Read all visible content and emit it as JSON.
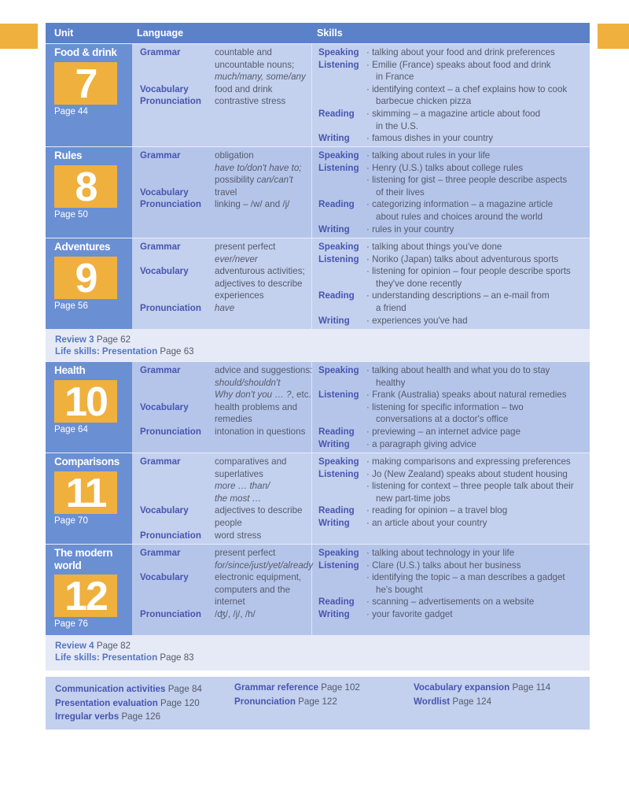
{
  "header": {
    "unit": "Unit",
    "language": "Language",
    "skills": "Skills"
  },
  "units": [
    {
      "title": "Food & drink",
      "number": "7",
      "page": "Page 44",
      "language": [
        {
          "l": "Grammar",
          "v": "countable and"
        },
        {
          "v": "uncountable nouns;"
        },
        {
          "vi": "much/many, some/any"
        },
        {
          "l": "Vocabulary",
          "v": "food and drink"
        },
        {
          "l": "Pronunciation",
          "v": "contrastive stress"
        }
      ],
      "skills": [
        {
          "l": "Speaking",
          "t": "· talking about your food and drink preferences"
        },
        {
          "l": "Listening",
          "t": "· Emilie (France) speaks about food and drink"
        },
        {
          "t": "in France",
          "ind": true
        },
        {
          "t": "· identifying context – a chef explains how to cook"
        },
        {
          "t": "barbecue chicken pizza",
          "ind": true
        },
        {
          "l": "Reading",
          "t": "· skimming – a magazine article about food"
        },
        {
          "t": "in the U.S.",
          "ind": true
        },
        {
          "l": "Writing",
          "t": "· famous dishes in your country"
        }
      ]
    },
    {
      "title": "Rules",
      "number": "8",
      "page": "Page 50",
      "language": [
        {
          "l": "Grammar",
          "v": "obligation"
        },
        {
          "vi": "have to/don't have to;"
        },
        {
          "v": "possibility ",
          "vi": "can/can't"
        },
        {
          "l": "Vocabulary",
          "v": "travel"
        },
        {
          "l": "Pronunciation",
          "v": "linking – /w/ and /j/"
        }
      ],
      "skills": [
        {
          "l": "Speaking",
          "t": "· talking about rules in your life"
        },
        {
          "l": "Listening",
          "t": "· Henry (U.S.) talks about college rules"
        },
        {
          "t": "· listening for gist – three people describe aspects"
        },
        {
          "t": "of their lives",
          "ind": true
        },
        {
          "l": "Reading",
          "t": "· categorizing information – a magazine article"
        },
        {
          "t": "about rules and choices around the world",
          "ind": true
        },
        {
          "l": "Writing",
          "t": "· rules in your country"
        }
      ]
    },
    {
      "title": "Adventures",
      "number": "9",
      "page": "Page 56",
      "language": [
        {
          "l": "Grammar",
          "v": "present perfect"
        },
        {
          "vi": "ever/never"
        },
        {
          "l": "Vocabulary",
          "v": "adventurous activities;"
        },
        {
          "v": "adjectives to describe"
        },
        {
          "v": "experiences"
        },
        {
          "l": "Pronunciation",
          "vi": "have"
        }
      ],
      "skills": [
        {
          "l": "Speaking",
          "t": "· talking about things you've done"
        },
        {
          "l": "Listening",
          "t": "· Noriko (Japan) talks about adventurous sports"
        },
        {
          "t": "· listening for opinion – four people describe sports"
        },
        {
          "t": "they've done recently",
          "ind": true
        },
        {
          "l": "Reading",
          "t": "· understanding descriptions – an e-mail from"
        },
        {
          "t": "a friend",
          "ind": true
        },
        {
          "l": "Writing",
          "t": "· experiences you've had"
        }
      ]
    },
    {
      "title": "Health",
      "number": "10",
      "page": "Page 64",
      "language": [
        {
          "l": "Grammar",
          "v": "advice and suggestions:"
        },
        {
          "vi": "should/shouldn't"
        },
        {
          "vi": "Why don't you … ?",
          "v2": ", etc."
        },
        {
          "l": "Vocabulary",
          "v": "health problems and"
        },
        {
          "v": "remedies"
        },
        {
          "l": "Pronunciation",
          "v": "intonation in questions"
        }
      ],
      "skills": [
        {
          "l": "Speaking",
          "t": "· talking about health and what you do to stay"
        },
        {
          "t": "healthy",
          "ind": true
        },
        {
          "l": "Listening",
          "t": "· Frank (Australia) speaks about natural remedies"
        },
        {
          "t": "· listening for specific information – two"
        },
        {
          "t": "conversations at a doctor's office",
          "ind": true
        },
        {
          "l": "Reading",
          "t": "· previewing – an internet advice page"
        },
        {
          "l": "Writing",
          "t": "· a paragraph giving advice"
        }
      ]
    },
    {
      "title": "Comparisons",
      "number": "11",
      "page": "Page 70",
      "language": [
        {
          "l": "Grammar",
          "v": "comparatives and"
        },
        {
          "v": "superlatives"
        },
        {
          "vi": "more … than/"
        },
        {
          "vi": "the most …"
        },
        {
          "l": "Vocabulary",
          "v": "adjectives to describe"
        },
        {
          "v": "people"
        },
        {
          "l": "Pronunciation",
          "v": "word stress"
        }
      ],
      "skills": [
        {
          "l": "Speaking",
          "t": "· making comparisons and expressing preferences"
        },
        {
          "l": "Listening",
          "t": "· Jo (New Zealand) speaks about student housing"
        },
        {
          "t": "· listening for context – three people talk about their"
        },
        {
          "t": "new part-time jobs",
          "ind": true
        },
        {
          "l": "Reading",
          "t": "· reading for opinion – a travel blog"
        },
        {
          "l": "Writing",
          "t": "· an article about your country"
        }
      ]
    },
    {
      "title": "The modern world",
      "number": "12",
      "page": "Page 76",
      "language": [
        {
          "l": "Grammar",
          "v": "present perfect"
        },
        {
          "vi": "for/since/just/yet/already"
        },
        {
          "l": "Vocabulary",
          "v": "electronic equipment,"
        },
        {
          "v": "computers and the"
        },
        {
          "v": "internet"
        },
        {
          "l": "Pronunciation",
          "v": "/ʤ/, /j/, /h/"
        }
      ],
      "skills": [
        {
          "l": "Speaking",
          "t": "· talking about technology in your life"
        },
        {
          "l": "Listening",
          "t": "· Clare (U.S.) talks about her business"
        },
        {
          "t": "· identifying the topic – a man describes a gadget"
        },
        {
          "t": "he's bought",
          "ind": true
        },
        {
          "l": "Reading",
          "t": "· scanning – advertisements on a website"
        },
        {
          "l": "Writing",
          "t": "· your favorite gadget"
        }
      ]
    }
  ],
  "reviews": [
    {
      "review": "Review 3",
      "review_page": "Page 62",
      "life": "Life skills: Presentation",
      "life_page": "Page 63"
    },
    {
      "review": "Review 4",
      "review_page": "Page 82",
      "life": "Life skills: Presentation",
      "life_page": "Page 83"
    }
  ],
  "footer": [
    [
      {
        "name": "Communication activities",
        "page": "Page 84"
      },
      {
        "name": "Presentation evaluation",
        "page": "Page 120"
      },
      {
        "name": "Irregular verbs",
        "page": "Page 126"
      }
    ],
    [
      {
        "name": "Grammar reference",
        "page": "Page 102"
      },
      {
        "name": "Pronunciation",
        "page": "Page 122"
      }
    ],
    [
      {
        "name": "Vocabulary expansion",
        "page": "Page 114"
      },
      {
        "name": "Wordlist",
        "page": "Page 124"
      }
    ]
  ],
  "colors": {
    "header": "#5b82c9",
    "unit_column": "#6a8fd3",
    "accent_orange": "#efb03e",
    "label": "#4755b0"
  }
}
